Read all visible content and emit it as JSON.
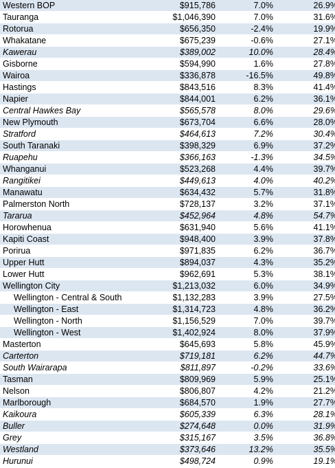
{
  "colors": {
    "band": "#dce6f1",
    "negative": "#ff0000"
  },
  "rows": [
    {
      "name": "Western BOP",
      "price": "$915,786",
      "growth": "7.0%",
      "share": "26.9%"
    },
    {
      "name": "Tauranga",
      "price": "$1,046,390",
      "growth": "7.0%",
      "share": "31.6%"
    },
    {
      "name": "Rotorua",
      "price": "$656,350",
      "growth": "-2.4%",
      "share": "19.9%"
    },
    {
      "name": "Whakatane",
      "price": "$675,239",
      "growth": "-0.6%",
      "share": "27.1%"
    },
    {
      "name": "Kawerau",
      "price": "$389,002",
      "growth": "10.0%",
      "share": "28.4%"
    },
    {
      "name": "Gisborne",
      "price": "$594,990",
      "growth": "1.6%",
      "share": "27.8%"
    },
    {
      "name": "Wairoa",
      "price": "$336,878",
      "growth": "-16.5%",
      "share": "49.8%"
    },
    {
      "name": "Hastings",
      "price": "$843,516",
      "growth": "8.3%",
      "share": "41.4%"
    },
    {
      "name": "Napier",
      "price": "$844,001",
      "growth": "6.2%",
      "share": "36.1%"
    },
    {
      "name": "Central Hawkes Bay",
      "price": "$565,578",
      "growth": "8.0%",
      "share": "29.6%"
    },
    {
      "name": "New Plymouth",
      "price": "$673,704",
      "growth": "6.6%",
      "share": "28.0%"
    },
    {
      "name": "Stratford",
      "price": "$464,613",
      "growth": "7.2%",
      "share": "30.4%"
    },
    {
      "name": "South Taranaki",
      "price": "$398,329",
      "growth": "6.9%",
      "share": "37.2%"
    },
    {
      "name": "Ruapehu",
      "price": "$366,163",
      "growth": "-1.3%",
      "share": "34.5%"
    },
    {
      "name": "Whanganui",
      "price": "$523,268",
      "growth": "4.4%",
      "share": "39.7%"
    },
    {
      "name": "Rangitikei",
      "price": "$449,613",
      "growth": "4.0%",
      "share": "40.2%"
    },
    {
      "name": "Manawatu",
      "price": "$634,432",
      "growth": "5.7%",
      "share": "31.8%"
    },
    {
      "name": "Palmerston North",
      "price": "$728,137",
      "growth": "3.2%",
      "share": "37.1%"
    },
    {
      "name": "Tararua",
      "price": "$452,964",
      "growth": "4.8%",
      "share": "54.7%"
    },
    {
      "name": "Horowhenua",
      "price": "$631,940",
      "growth": "5.6%",
      "share": "41.1%"
    },
    {
      "name": "Kapiti Coast",
      "price": "$948,400",
      "growth": "3.9%",
      "share": "37.8%"
    },
    {
      "name": "Porirua",
      "price": "$971,835",
      "growth": "6.2%",
      "share": "36.7%"
    },
    {
      "name": "Upper Hutt",
      "price": "$894,037",
      "growth": "4.3%",
      "share": "35.2%"
    },
    {
      "name": "Lower Hutt",
      "price": "$962,691",
      "growth": "5.3%",
      "share": "38.1%"
    },
    {
      "name": "Wellington City",
      "price": "$1,213,032",
      "growth": "6.0%",
      "share": "34.9%"
    },
    {
      "name": "Wellington - Central & South",
      "price": "$1,132,283",
      "growth": "3.9%",
      "share": "27.5%"
    },
    {
      "name": "Wellington - East",
      "price": "$1,314,723",
      "growth": "4.8%",
      "share": "36.2%"
    },
    {
      "name": "Wellington - North",
      "price": "$1,156,529",
      "growth": "7.0%",
      "share": "39.7%"
    },
    {
      "name": "Wellington - West",
      "price": "$1,402,924",
      "growth": "8.0%",
      "share": "37.9%"
    },
    {
      "name": "Masterton",
      "price": "$645,693",
      "growth": "5.8%",
      "share": "45.9%"
    },
    {
      "name": "Carterton",
      "price": "$719,181",
      "growth": "6.2%",
      "share": "44.7%"
    },
    {
      "name": "South Wairarapa",
      "price": "$811,897",
      "growth": "-0.2%",
      "share": "33.6%"
    },
    {
      "name": "Tasman",
      "price": "$809,969",
      "growth": "5.9%",
      "share": "25.1%"
    },
    {
      "name": "Nelson",
      "price": "$806,807",
      "growth": "4.2%",
      "share": "21.2%"
    },
    {
      "name": "Marlborough",
      "price": "$684,570",
      "growth": "1.9%",
      "share": "27.7%"
    },
    {
      "name": "Kaikoura",
      "price": "$605,339",
      "growth": "6.3%",
      "share": "28.1%"
    },
    {
      "name": "Buller",
      "price": "$274,648",
      "growth": "0.0%",
      "share": "31.9%"
    },
    {
      "name": "Grey",
      "price": "$315,167",
      "growth": "3.5%",
      "share": "36.8%"
    },
    {
      "name": "Westland",
      "price": "$373,646",
      "growth": "13.2%",
      "share": "35.5%"
    },
    {
      "name": "Hurunui",
      "price": "$498,724",
      "growth": "0.9%",
      "share": "19.1%"
    }
  ]
}
